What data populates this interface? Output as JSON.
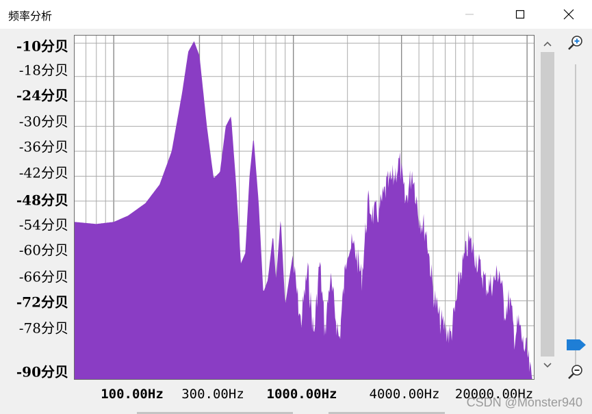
{
  "window": {
    "title": "频率分析"
  },
  "icons": {
    "minimize": "minimize-icon",
    "maximize": "maximize-icon",
    "close": "close-icon",
    "zoom_in": "zoom-in-icon",
    "zoom_out": "zoom-out-icon",
    "scroll_up": "chevron-up-icon",
    "scroll_down": "chevron-down-icon"
  },
  "y_labels": [
    "-10分贝",
    "-18分贝",
    "-24分贝",
    "-30分贝",
    "-36分贝",
    "-42分贝",
    "-48分贝",
    "-54分贝",
    "-60分贝",
    "-66分贝",
    "-72分贝",
    "-78分贝",
    "-90分贝"
  ],
  "x_labels": [
    "100.00Hz",
    "300.00Hz",
    "1000.00Hz",
    "4000.00Hz",
    "20000.00Hz"
  ],
  "watermark": "CSDN @Monster940",
  "colors": {
    "spectrum_fill": "#8a3dc4",
    "grid": "#aaaaaa",
    "plot_background": "#ffffff",
    "zoom_thumb": "#1e7ed6"
  },
  "chart_data": {
    "type": "area",
    "x_scale": "log",
    "y_unit": "分贝",
    "xlim": [
      60,
      22000
    ],
    "ylim": [
      -91,
      -8
    ],
    "x_ticks": [
      100,
      300,
      1000,
      4000,
      20000
    ],
    "y_ticks": [
      -10,
      -18,
      -24,
      -30,
      -36,
      -42,
      -48,
      -54,
      -60,
      -66,
      -72,
      -78,
      -90
    ],
    "grid": true,
    "series": [
      {
        "x": [
          60,
          80,
          100,
          120,
          150,
          180,
          210,
          240,
          260,
          280,
          300,
          330,
          360,
          390,
          420,
          450,
          480,
          510,
          540,
          570,
          600,
          640,
          680,
          720,
          770,
          800,
          850,
          900,
          1000,
          1100,
          1200,
          1300,
          1400,
          1500,
          1600,
          1800,
          2000,
          2200,
          2400,
          2600,
          2800,
          3000,
          3300,
          3600,
          3900,
          4200,
          4600,
          5000,
          5500,
          6000,
          6500,
          7000,
          7500,
          8000,
          8500,
          9000,
          9500,
          10000,
          11000,
          12000,
          13000,
          14000,
          15000,
          16000,
          17000,
          18000,
          19000,
          20000,
          21000,
          22000
        ],
        "y": [
          -53,
          -53.5,
          -53,
          -51.5,
          -48.5,
          -44,
          -36,
          -22,
          -12,
          -9.5,
          -13,
          -30,
          -42.5,
          -41,
          -30,
          -27.5,
          -44,
          -63,
          -60.5,
          -42,
          -32.5,
          -48,
          -70,
          -67,
          -56,
          -67,
          -52,
          -73,
          -60,
          -74,
          -61,
          -77,
          -59,
          -76,
          -63,
          -78,
          -55,
          -56,
          -63,
          -45,
          -48,
          -47,
          -41,
          -39,
          -35,
          -45,
          -37,
          -48,
          -52,
          -66,
          -73,
          -75,
          -77,
          -70,
          -62,
          -58,
          -54,
          -56,
          -61,
          -65,
          -64,
          -61,
          -71,
          -68,
          -77,
          -74,
          -79,
          -81,
          -87,
          -91
        ]
      }
    ]
  }
}
